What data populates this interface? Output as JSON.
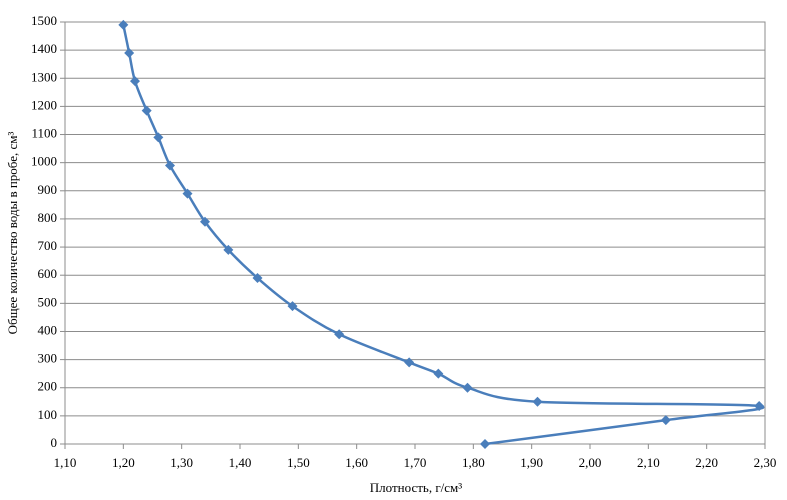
{
  "chart_data": {
    "type": "line",
    "xlabel": "Плотность, г/см³",
    "ylabel": "Общее количество воды в пробе, см³",
    "x": [
      1.2,
      1.21,
      1.22,
      1.24,
      1.26,
      1.28,
      1.31,
      1.34,
      1.38,
      1.43,
      1.49,
      1.57,
      1.69,
      1.74,
      1.79,
      1.91,
      2.29,
      2.13,
      1.82
    ],
    "values": [
      1490,
      1390,
      1290,
      1185,
      1090,
      990,
      890,
      790,
      690,
      590,
      490,
      390,
      290,
      250,
      200,
      150,
      135,
      85,
      0
    ],
    "color": "#4a7ebb",
    "xlim": [
      1.1,
      2.3
    ],
    "xticks": [
      {
        "value": 1.1,
        "label": "1,10"
      },
      {
        "value": 1.2,
        "label": "1,20"
      },
      {
        "value": 1.3,
        "label": "1,30"
      },
      {
        "value": 1.4,
        "label": "1,40"
      },
      {
        "value": 1.5,
        "label": "1,50"
      },
      {
        "value": 1.6,
        "label": "1,60"
      },
      {
        "value": 1.7,
        "label": "1,70"
      },
      {
        "value": 1.8,
        "label": "1,80"
      },
      {
        "value": 1.9,
        "label": "1,90"
      },
      {
        "value": 2.0,
        "label": "2,00"
      },
      {
        "value": 2.1,
        "label": "2,10"
      },
      {
        "value": 2.2,
        "label": "2,20"
      },
      {
        "value": 2.3,
        "label": "2,30"
      }
    ],
    "ylim": [
      0,
      1500
    ],
    "yticks": [
      0,
      100,
      200,
      300,
      400,
      500,
      600,
      700,
      800,
      900,
      1000,
      1100,
      1200,
      1300,
      1400,
      1500
    ],
    "grid": true
  }
}
